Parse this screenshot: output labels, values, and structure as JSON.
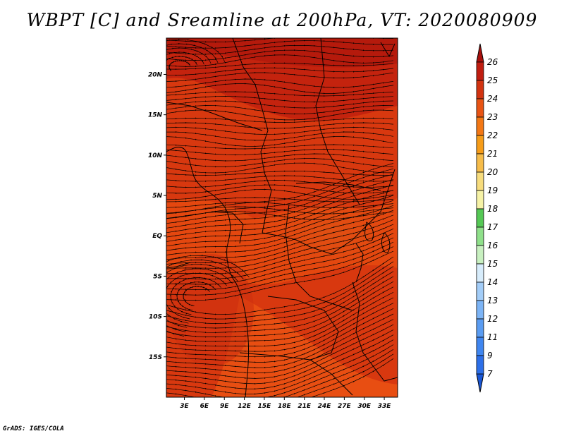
{
  "chart_data": {
    "type": "heatmap",
    "title": "WBPT [C] and Sreamline at 200hPa, VT: 2020080909",
    "variable": "WBPT",
    "unit": "C",
    "level": "200hPa",
    "valid_time": "2020080909",
    "x_ticks": [
      "3E",
      "6E",
      "9E",
      "12E",
      "15E",
      "18E",
      "21E",
      "24E",
      "27E",
      "30E",
      "33E"
    ],
    "y_ticks": [
      "20N",
      "15N",
      "10N",
      "5N",
      "EQ",
      "5S",
      "10S",
      "15S"
    ],
    "xlim": [
      0.3,
      35
    ],
    "ylim": [
      -20,
      24.5
    ],
    "colorbar": {
      "labels": [
        "7",
        "9",
        "11",
        "12",
        "13",
        "14",
        "15",
        "16",
        "17",
        "18",
        "19",
        "20",
        "21",
        "22",
        "23",
        "24",
        "25",
        "26"
      ],
      "colors": [
        "#1a57d6",
        "#2d6fe8",
        "#3f86f0",
        "#5a9cf2",
        "#7cb4f6",
        "#a3cdf8",
        "#d7ecfb",
        "#c8f0c0",
        "#8fe08a",
        "#55c855",
        "#f6f2a6",
        "#f7dc7d",
        "#f6bc4a",
        "#f69c18",
        "#f37714",
        "#e85414",
        "#d23310",
        "#c01d10",
        "#a80f0c"
      ]
    },
    "fields": {
      "dominant_range": [
        23,
        26
      ],
      "features": [
        {
          "region": "north",
          "approx_lat": [
            15,
            24
          ],
          "wbpt": 25.5
        },
        {
          "region": "central",
          "approx_lat": [
            -5,
            12
          ],
          "wbpt": 24.5
        },
        {
          "region": "south",
          "approx_lat": [
            -20,
            -5
          ],
          "wbpt": 23.8
        }
      ]
    },
    "credit": "GrADS: IGES/COLA"
  }
}
